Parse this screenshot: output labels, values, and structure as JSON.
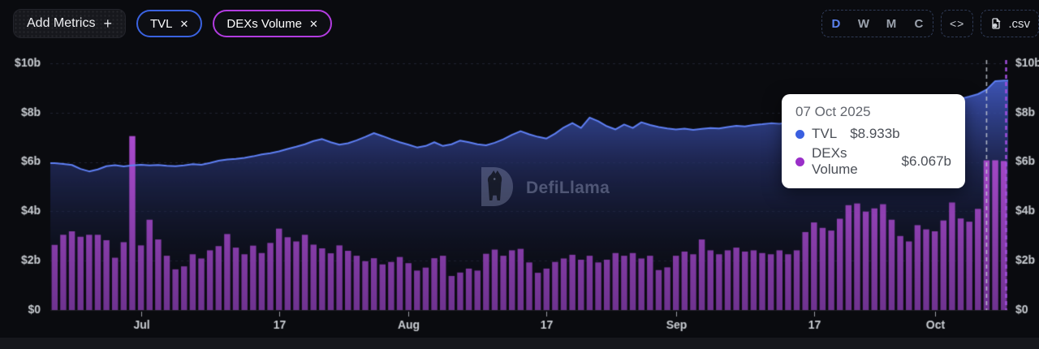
{
  "header": {
    "add_metrics": {
      "label": "Add Metrics",
      "plus": "+"
    },
    "metrics": [
      {
        "label": "TVL",
        "close": "✕",
        "color": "#3a62e0"
      },
      {
        "label": "DEXs Volume",
        "close": "✕",
        "color": "#b23ce0"
      }
    ],
    "intervals": {
      "options": [
        "D",
        "W",
        "M",
        "C"
      ],
      "active": "D",
      "active_color": "#5b82f0"
    },
    "embed_icon": "<>",
    "csv_label": ".csv"
  },
  "watermark": {
    "text": "DefiLlama"
  },
  "tooltip": {
    "date": "07 Oct 2025",
    "rows": [
      {
        "label": "TVL",
        "value": "$8.933b",
        "color": "#3a5fe0"
      },
      {
        "label": "DEXs Volume",
        "value": "$6.067b",
        "color": "#9a2fc8"
      }
    ]
  },
  "chart_data": {
    "type": "mixed",
    "ylim": [
      0,
      10
    ],
    "grid": "dashed-horizontal",
    "y_ticks": [
      {
        "value": 0,
        "label": "$0"
      },
      {
        "value": 2,
        "label": "$2b"
      },
      {
        "value": 4,
        "label": "$4b"
      },
      {
        "value": 6,
        "label": "$6b"
      },
      {
        "value": 8,
        "label": "$8b"
      },
      {
        "value": 10,
        "label": "$10b"
      }
    ],
    "x_ticks": [
      {
        "index": 10,
        "label": "Jul"
      },
      {
        "index": 26,
        "label": "17"
      },
      {
        "index": 41,
        "label": "Aug"
      },
      {
        "index": 57,
        "label": "17"
      },
      {
        "index": 72,
        "label": "Sep"
      },
      {
        "index": 88,
        "label": "17"
      },
      {
        "index": 102,
        "label": "Oct"
      }
    ],
    "hover": {
      "index": 108,
      "date": "07 Oct 2025",
      "tvl": 8.933,
      "dexs_volume": 6.067
    },
    "colors": {
      "line": "#5f80f5",
      "area_top": "rgba(72,100,216,0.95)",
      "area_mid": "rgba(36,46,100,0.72)",
      "area_bottom": "rgba(10,11,18,0.12)",
      "bar_top": "#c355e8",
      "bar_bottom": "#6f3390",
      "hover_line": "rgba(195,200,210,0.85)",
      "edge_line": "#a44fe0",
      "axis_text": "#c9cdd2",
      "grid": "rgba(110,122,175,0.22)"
    },
    "series": [
      {
        "name": "TVL",
        "type": "line",
        "unit": "$b",
        "values": [
          5.95,
          5.92,
          5.88,
          5.72,
          5.62,
          5.7,
          5.83,
          5.87,
          5.82,
          5.86,
          5.89,
          5.86,
          5.88,
          5.85,
          5.83,
          5.86,
          5.91,
          5.89,
          5.96,
          6.05,
          6.1,
          6.13,
          6.17,
          6.23,
          6.31,
          6.36,
          6.43,
          6.53,
          6.62,
          6.72,
          6.85,
          6.93,
          6.8,
          6.7,
          6.76,
          6.88,
          7.02,
          7.17,
          7.05,
          6.92,
          6.8,
          6.7,
          6.59,
          6.65,
          6.8,
          6.65,
          6.72,
          6.87,
          6.8,
          6.72,
          6.68,
          6.78,
          6.92,
          7.1,
          7.25,
          7.12,
          7.02,
          6.95,
          7.15,
          7.4,
          7.58,
          7.38,
          7.8,
          7.65,
          7.45,
          7.32,
          7.52,
          7.38,
          7.61,
          7.5,
          7.42,
          7.36,
          7.32,
          7.35,
          7.3,
          7.34,
          7.38,
          7.36,
          7.42,
          7.47,
          7.44,
          7.5,
          7.53,
          7.57,
          7.55,
          7.6,
          7.58,
          7.62,
          7.65,
          7.7,
          7.68,
          7.72,
          7.76,
          7.8,
          7.78,
          7.85,
          7.9,
          7.95,
          8.0,
          8.05,
          8.12,
          8.2,
          8.28,
          8.35,
          8.45,
          8.56,
          8.65,
          8.75,
          8.933,
          9.28,
          9.3
        ]
      },
      {
        "name": "DEXs Volume",
        "type": "bar",
        "unit": "$b",
        "values": [
          2.64,
          3.05,
          3.19,
          2.97,
          3.05,
          3.05,
          2.83,
          2.12,
          2.75,
          7.05,
          2.62,
          3.66,
          2.86,
          2.2,
          1.65,
          1.77,
          2.26,
          2.09,
          2.42,
          2.59,
          3.08,
          2.53,
          2.26,
          2.61,
          2.31,
          2.72,
          3.3,
          2.95,
          2.78,
          3.05,
          2.65,
          2.5,
          2.3,
          2.62,
          2.4,
          2.2,
          1.98,
          2.1,
          1.85,
          1.95,
          2.15,
          1.9,
          1.6,
          1.72,
          2.1,
          2.2,
          1.38,
          1.52,
          1.68,
          1.6,
          2.28,
          2.45,
          2.2,
          2.42,
          2.48,
          1.93,
          1.51,
          1.68,
          1.95,
          2.09,
          2.24,
          2.04,
          2.2,
          1.93,
          2.04,
          2.31,
          2.2,
          2.31,
          2.09,
          2.2,
          1.62,
          1.73,
          2.2,
          2.37,
          2.26,
          2.86,
          2.42,
          2.26,
          2.42,
          2.53,
          2.37,
          2.42,
          2.31,
          2.26,
          2.42,
          2.26,
          2.42,
          3.16,
          3.55,
          3.33,
          3.22,
          3.7,
          4.25,
          4.32,
          3.99,
          4.12,
          4.29,
          3.66,
          3.0,
          2.78,
          3.44,
          3.27,
          3.19,
          3.63,
          4.36,
          3.71,
          3.58,
          4.1,
          6.067,
          6.07,
          6.04
        ]
      }
    ]
  }
}
